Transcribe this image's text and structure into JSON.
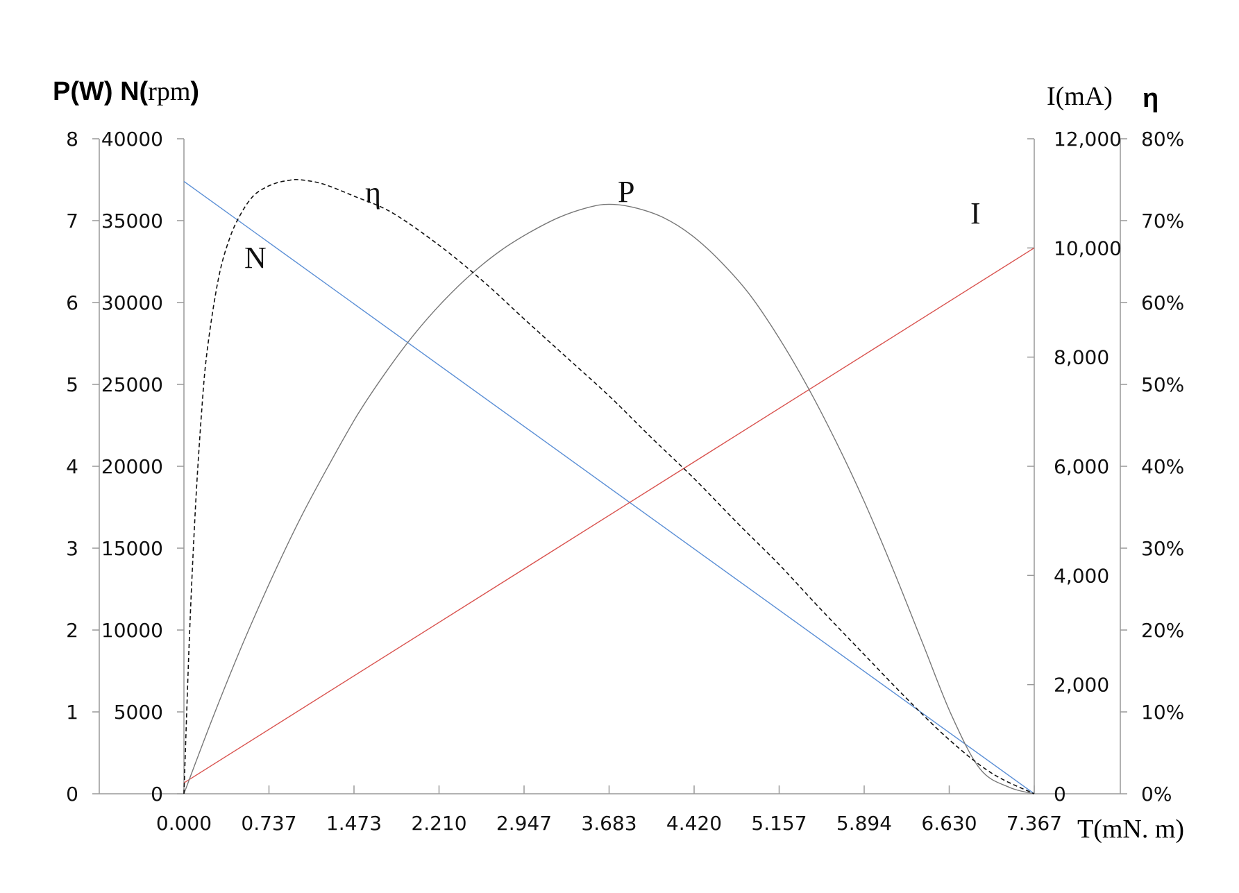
{
  "chart_data": {
    "type": "line",
    "x_axis": {
      "label": "T(mN. m)",
      "ticks": [
        "0.000",
        "0.737",
        "1.473",
        "2.210",
        "2.947",
        "3.683",
        "4.420",
        "5.157",
        "5.894",
        "6.630",
        "7.367"
      ],
      "range": [
        0,
        7.367
      ]
    },
    "left_axes": {
      "title_bold_1": "P(W) N(",
      "title_serif": "rpm",
      "title_bold_2": ")",
      "p_ticks": [
        "0",
        "1",
        "2",
        "3",
        "4",
        "5",
        "6",
        "7",
        "8"
      ],
      "p_range": [
        0,
        8
      ],
      "n_ticks": [
        "0",
        "5000",
        "10000",
        "15000",
        "20000",
        "25000",
        "30000",
        "35000",
        "40000"
      ],
      "n_range": [
        0,
        40000
      ]
    },
    "right_axes": {
      "i_title": "I(mA)",
      "i_ticks": [
        "0",
        "2,000",
        "4,000",
        "6,000",
        "8,000",
        "10,000",
        "12,000"
      ],
      "i_range": [
        0,
        12000
      ],
      "eta_title": "η",
      "eta_ticks": [
        "0%",
        "10%",
        "20%",
        "30%",
        "40%",
        "50%",
        "60%",
        "70%",
        "80%"
      ],
      "eta_range": [
        0,
        80
      ]
    },
    "series": [
      {
        "name": "N",
        "axis": "N",
        "color": "#5b8fd6",
        "dash": false,
        "x": [
          0,
          7.367
        ],
        "y": [
          37400,
          0
        ]
      },
      {
        "name": "I",
        "axis": "I",
        "color": "#d9534f",
        "dash": false,
        "x": [
          0,
          7.367
        ],
        "y": [
          200,
          10000
        ]
      },
      {
        "name": "P",
        "axis": "P",
        "color": "#777777",
        "dash": false,
        "x": [
          0,
          0.25,
          0.5,
          0.75,
          1.0,
          1.25,
          1.5,
          1.75,
          2.0,
          2.25,
          2.5,
          2.75,
          3.0,
          3.25,
          3.5,
          3.683,
          3.9,
          4.15,
          4.4,
          4.65,
          4.9,
          5.15,
          5.4,
          5.65,
          5.9,
          6.15,
          6.4,
          6.65,
          6.9,
          7.15,
          7.367
        ],
        "y": [
          0,
          0.93,
          1.8,
          2.6,
          3.34,
          4.0,
          4.62,
          5.15,
          5.62,
          6.02,
          6.36,
          6.64,
          6.86,
          7.04,
          7.16,
          7.2,
          7.16,
          7.04,
          6.82,
          6.5,
          6.1,
          5.58,
          4.98,
          4.3,
          3.55,
          2.72,
          1.84,
          0.96,
          0.3,
          0.08,
          0
        ]
      },
      {
        "name": "η",
        "axis": "eta",
        "color": "#111111",
        "dash": true,
        "x": [
          0,
          0.05,
          0.1,
          0.15,
          0.2,
          0.3,
          0.4,
          0.5,
          0.6,
          0.7,
          0.8,
          0.9,
          1.0,
          1.2,
          1.473,
          1.8,
          2.21,
          2.6,
          2.947,
          3.3,
          3.683,
          4.05,
          4.42,
          4.8,
          5.157,
          5.5,
          5.894,
          6.25,
          6.63,
          7.0,
          7.367
        ],
        "y": [
          0,
          20,
          35,
          46,
          54,
          63,
          68,
          71,
          73,
          74,
          74.6,
          74.9,
          75,
          74.5,
          73,
          71,
          67,
          62.5,
          58,
          53.5,
          48.6,
          43.5,
          38.5,
          33,
          28,
          22.8,
          17,
          11.8,
          6.6,
          2.5,
          0
        ]
      }
    ],
    "annotations": [
      {
        "text": "N",
        "series": "N"
      },
      {
        "text": "η",
        "series": "η"
      },
      {
        "text": "P",
        "series": "P"
      },
      {
        "text": "I",
        "series": "I"
      }
    ],
    "grid": false,
    "legend": "none"
  }
}
